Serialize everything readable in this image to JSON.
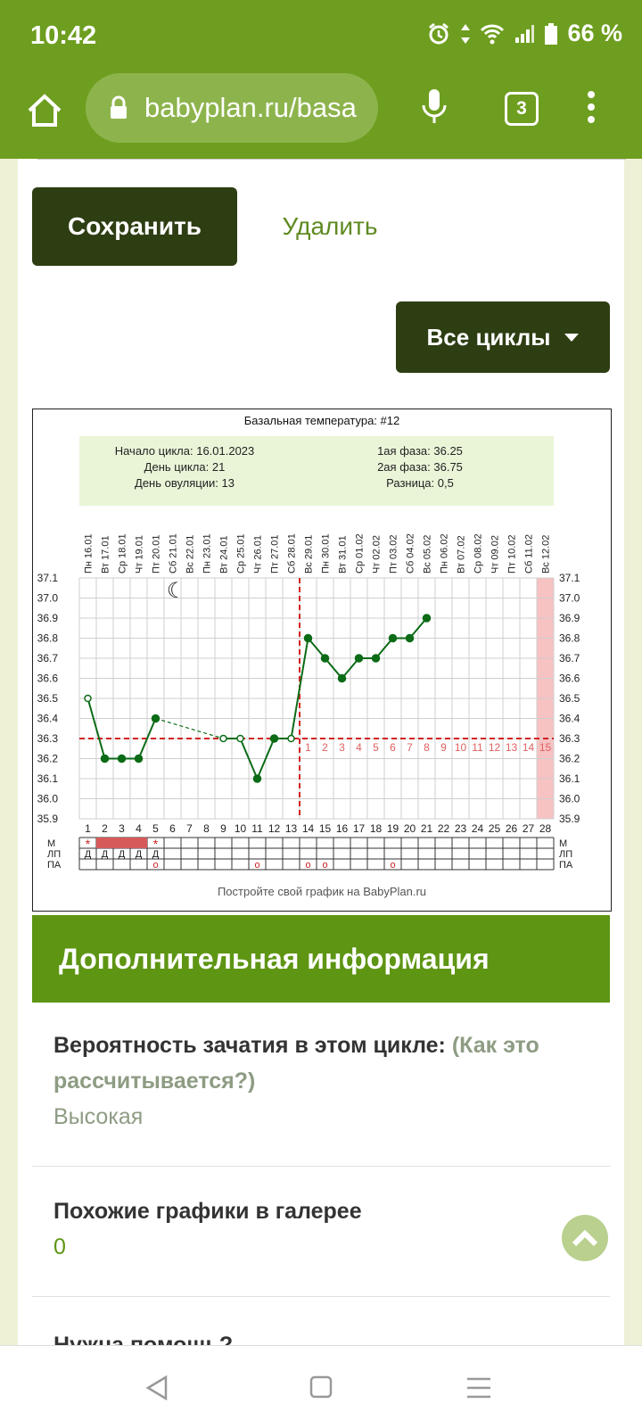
{
  "status_bar": {
    "time": "10:42",
    "battery_percent": "66 %"
  },
  "browser": {
    "url": "babyplan.ru/basa",
    "tab_count": "3"
  },
  "actions": {
    "save_label": "Сохранить",
    "delete_label": "Удалить",
    "cycles_label": "Все циклы"
  },
  "chart": {
    "title": "Базальная температура: #12",
    "summary_left": [
      "Начало цикла: 16.01.2023",
      "День цикла: 21",
      "День овуляции: 13"
    ],
    "summary_right": [
      "1ая фаза: 36.25",
      "2ая фаза: 36.75",
      "Разница: 0,5"
    ],
    "footer": "Постройте свой график на BabyPlan.ru",
    "row_labels": [
      "М",
      "ЛП",
      "ПА"
    ],
    "cell_letter": "Д",
    "symbols": {
      "star": "*",
      "circle": "o",
      "moon": "☾"
    }
  },
  "chart_data": {
    "type": "line",
    "title": "Базальная температура: #12",
    "x": [
      1,
      2,
      3,
      4,
      5,
      6,
      7,
      8,
      9,
      10,
      11,
      12,
      13,
      14,
      15,
      16,
      17,
      18,
      19,
      20,
      21,
      22,
      23,
      24,
      25,
      26,
      27,
      28
    ],
    "x_top_labels": [
      "Пн 16.01",
      "Вт 17.01",
      "Ср 18.01",
      "Чт 19.01",
      "Пт 20.01",
      "Сб 21.01",
      "Вс 22.01",
      "Пн 23.01",
      "Вт 24.01",
      "Ср 25.01",
      "Чт 26.01",
      "Пт 27.01",
      "Сб 28.01",
      "Вс 29.01",
      "Пн 30.01",
      "Вт 31.01",
      "Ср 01.02",
      "Чт 02.02",
      "Пт 03.02",
      "Сб 04.02",
      "Вс 05.02",
      "Пн 06.02",
      "Вт 07.02",
      "Ср 08.02",
      "Чт 09.02",
      "Пт 10.02",
      "Сб 11.02",
      "Вс 12.02"
    ],
    "y_ticks": [
      "37.1",
      "37.0",
      "36.9",
      "36.8",
      "36.7",
      "36.6",
      "36.5",
      "36.4",
      "36.3",
      "36.2",
      "36.1",
      "36.0",
      "35.9"
    ],
    "ylim": [
      35.9,
      37.1
    ],
    "series": [
      {
        "values": [
          36.5,
          36.2,
          36.2,
          36.2,
          36.4,
          null,
          null,
          null,
          36.3,
          36.3,
          36.1,
          36.3,
          36.3,
          36.8,
          36.7,
          36.6,
          36.7,
          36.7,
          36.8,
          36.8,
          36.9,
          null,
          null,
          null,
          null,
          null,
          null,
          null
        ]
      }
    ],
    "coverline": 36.3,
    "ovulation_day": 13,
    "post_ovulation_labels": [
      "1",
      "2",
      "3",
      "4",
      "5",
      "6",
      "7",
      "8",
      "9",
      "10",
      "11",
      "12",
      "13",
      "14",
      "15"
    ],
    "highlight_day": 28,
    "M_row": {
      "star_days": [
        1,
        5
      ],
      "filled_days": [
        2,
        3,
        4
      ]
    },
    "LP_row_days": [
      1,
      2,
      3,
      4,
      5
    ],
    "PA_row_days": [
      5,
      11,
      14,
      15,
      19
    ]
  },
  "info": {
    "heading": "Дополнительная информация",
    "probability_label": "Вероятность зачатия в этом цикле:",
    "probability_link": "(Как это рассчитывается?)",
    "probability_value": "Высокая",
    "similar_label": "Похожие графики в галерее",
    "similar_value": "0",
    "help_label": "Нужна помощь?"
  }
}
